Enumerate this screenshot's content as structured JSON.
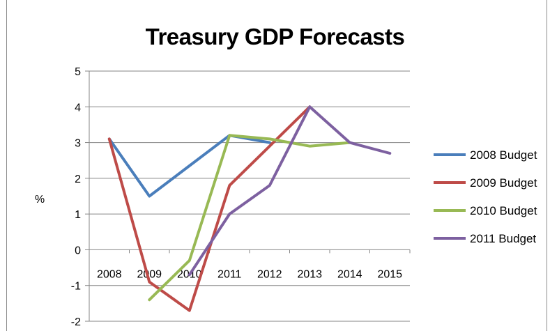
{
  "chart_data": {
    "type": "line",
    "title": "Treasury GDP Forecasts",
    "xlabel": "",
    "ylabel": "%",
    "categories": [
      "2008",
      "2009",
      "2010",
      "2011",
      "2012",
      "2013",
      "2014",
      "2015"
    ],
    "ylim": [
      -2,
      5
    ],
    "yticks": [
      "5",
      "4",
      "3",
      "2",
      "1",
      "0",
      "-1",
      "-2"
    ],
    "grid": true,
    "legend_position": "right",
    "series": [
      {
        "name": "2008 Budget",
        "color": "#4a7ebb",
        "values": [
          3.1,
          1.5,
          2.35,
          3.2,
          3.0,
          null,
          null,
          null
        ]
      },
      {
        "name": "2009 Budget",
        "color": "#be4b48",
        "values": [
          3.1,
          -0.9,
          -1.7,
          1.8,
          2.9,
          4.0,
          null,
          null
        ]
      },
      {
        "name": "2010 Budget",
        "color": "#98b954",
        "values": [
          null,
          -1.4,
          -0.3,
          3.2,
          3.1,
          2.9,
          3.0,
          null
        ]
      },
      {
        "name": "2011 Budget",
        "color": "#7d60a0",
        "values": [
          null,
          null,
          -0.7,
          1.0,
          1.8,
          4.0,
          3.0,
          2.7
        ]
      }
    ]
  }
}
